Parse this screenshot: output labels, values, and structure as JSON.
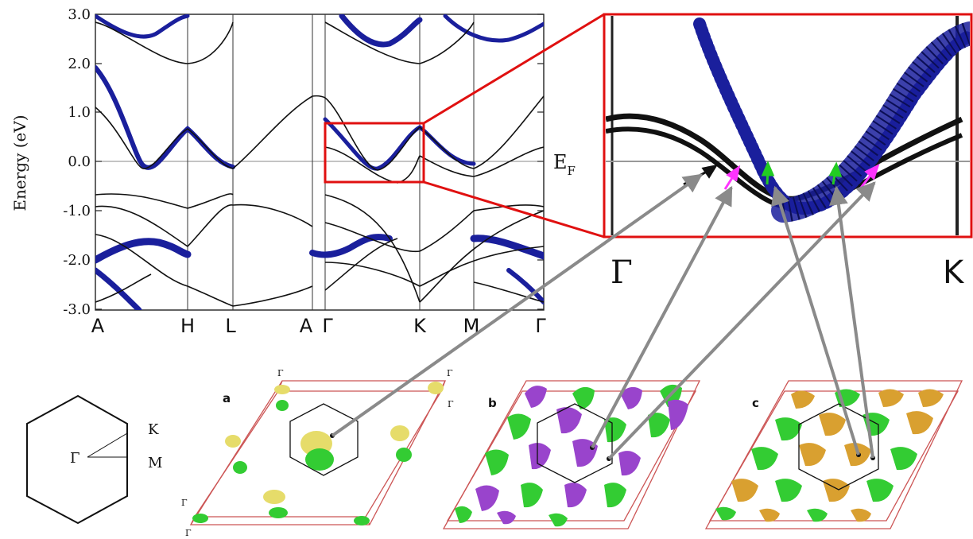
{
  "band_structure": {
    "y_axis_label": "Energy (eV)",
    "y_ticks": [
      "3.0",
      "2.0",
      "1.0",
      "0.0",
      "-1.0",
      "-2.0",
      "-3.0"
    ],
    "k_points": [
      "A",
      "H",
      "L",
      "A",
      "Γ",
      "K",
      "M",
      "Γ"
    ],
    "fermi_level_label": "E",
    "fermi_level_subscript": "F"
  },
  "zoom_inset": {
    "left_label": "Γ",
    "right_label": "K"
  },
  "brillouin_zone": {
    "labels": {
      "gamma": "Γ",
      "k": "K",
      "m": "M"
    }
  },
  "fermi_surfaces": [
    {
      "panel_label": "a",
      "corner_labels": [
        "Γ",
        "Γ",
        "Γ",
        "Γ",
        "Γ"
      ]
    },
    {
      "panel_label": "b"
    },
    {
      "panel_label": "c"
    }
  ],
  "colors": {
    "band_weight": "#1a1f9c",
    "highlight_box": "#e01010",
    "arrow_black": "#111111",
    "arrow_magenta": "#ff33ff",
    "arrow_green": "#22cc22",
    "connector": "#8a8a8a",
    "sheet_yellow": "#e6dc6a",
    "sheet_green": "#33cc33",
    "sheet_purple": "#9944cc",
    "sheet_orange": "#d9a030",
    "cell_edge": "#cc5555"
  }
}
